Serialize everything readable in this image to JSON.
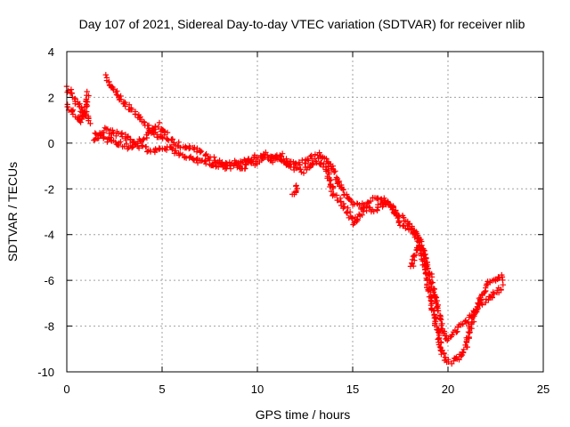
{
  "chart_data": {
    "type": "scatter",
    "title": "Day 107 of 2021, Sidereal Day-to-day VTEC variation (SDTVAR) for receiver nlib",
    "xlabel": "GPS time / hours",
    "ylabel": "SDTVAR / TECUs",
    "xlim": [
      0,
      25
    ],
    "ylim": [
      -10,
      4
    ],
    "xticks": [
      0,
      5,
      10,
      15,
      20,
      25
    ],
    "yticks": [
      -10,
      -8,
      -6,
      -4,
      -2,
      0,
      2,
      4
    ],
    "grid": true,
    "marker": "+",
    "series": [
      {
        "name": "SDTVAR",
        "color": "#ff0000",
        "arcs": [
          [
            [
              0.0,
              2.4
            ],
            [
              0.2,
              2.2
            ],
            [
              0.4,
              1.9
            ],
            [
              0.6,
              1.7
            ],
            [
              0.8,
              1.4
            ],
            [
              1.0,
              1.2
            ],
            [
              1.2,
              0.9
            ]
          ],
          [
            [
              0.0,
              1.7
            ],
            [
              0.2,
              1.5
            ],
            [
              0.4,
              1.3
            ],
            [
              0.6,
              1.1
            ],
            [
              0.8,
              1.0
            ],
            [
              1.0,
              1.4
            ],
            [
              1.1,
              2.2
            ]
          ],
          [
            [
              1.4,
              0.2
            ],
            [
              1.7,
              0.5
            ],
            [
              2.0,
              0.6
            ],
            [
              2.3,
              0.5
            ],
            [
              2.6,
              0.4
            ],
            [
              3.0,
              0.3
            ],
            [
              3.4,
              0.1
            ],
            [
              3.8,
              -0.1
            ],
            [
              4.2,
              -0.3
            ],
            [
              4.6,
              -0.3
            ],
            [
              5.0,
              -0.2
            ],
            [
              5.5,
              -0.3
            ],
            [
              6.0,
              -0.5
            ],
            [
              6.5,
              -0.6
            ],
            [
              7.0,
              -0.8
            ],
            [
              7.5,
              -0.9
            ],
            [
              8.0,
              -1.0
            ],
            [
              8.5,
              -1.1
            ],
            [
              9.0,
              -0.9
            ],
            [
              9.5,
              -0.7
            ],
            [
              10.0,
              -0.6
            ],
            [
              10.5,
              -0.5
            ],
            [
              11.0,
              -0.6
            ],
            [
              11.5,
              -0.8
            ],
            [
              12.0,
              -0.9
            ],
            [
              12.5,
              -0.8
            ],
            [
              13.0,
              -0.6
            ],
            [
              13.4,
              -0.5
            ],
            [
              13.8,
              -0.9
            ],
            [
              14.2,
              -1.6
            ],
            [
              14.6,
              -2.2
            ],
            [
              15.0,
              -2.6
            ],
            [
              15.4,
              -2.8
            ],
            [
              15.8,
              -2.6
            ],
            [
              16.2,
              -2.4
            ],
            [
              16.6,
              -2.5
            ],
            [
              17.0,
              -2.8
            ],
            [
              17.5,
              -3.2
            ],
            [
              18.0,
              -3.6
            ],
            [
              18.5,
              -4.2
            ],
            [
              18.9,
              -5.2
            ],
            [
              19.2,
              -6.3
            ],
            [
              19.5,
              -7.3
            ],
            [
              19.8,
              -8.3
            ],
            [
              20.0,
              -8.6
            ],
            [
              20.4,
              -8.2
            ],
            [
              20.8,
              -7.9
            ],
            [
              21.2,
              -7.6
            ],
            [
              21.5,
              -7.2
            ],
            [
              21.8,
              -6.6
            ],
            [
              22.1,
              -6.1
            ],
            [
              22.4,
              -6.0
            ],
            [
              22.7,
              -5.8
            ],
            [
              22.9,
              -5.9
            ]
          ],
          [
            [
              1.6,
              0.3
            ],
            [
              2.0,
              0.2
            ],
            [
              2.4,
              0.1
            ],
            [
              2.8,
              0.0
            ],
            [
              3.2,
              -0.2
            ],
            [
              3.6,
              0.0
            ],
            [
              4.0,
              0.2
            ],
            [
              4.4,
              0.5
            ],
            [
              4.8,
              0.8
            ],
            [
              5.2,
              0.4
            ],
            [
              5.6,
              0.0
            ],
            [
              6.0,
              -0.1
            ],
            [
              6.4,
              -0.2
            ],
            [
              6.8,
              -0.3
            ],
            [
              7.2,
              -0.5
            ],
            [
              7.6,
              -0.7
            ],
            [
              8.0,
              -0.8
            ],
            [
              8.4,
              -1.0
            ],
            [
              8.8,
              -0.8
            ],
            [
              9.2,
              -1.2
            ],
            [
              9.6,
              -0.7
            ],
            [
              10.0,
              -0.9
            ],
            [
              10.4,
              -0.6
            ],
            [
              10.8,
              -0.8
            ],
            [
              11.2,
              -0.5
            ],
            [
              11.6,
              -1.0
            ],
            [
              12.0,
              -1.1
            ],
            [
              12.4,
              -1.2
            ],
            [
              12.8,
              -1.0
            ],
            [
              13.2,
              -0.8
            ],
            [
              13.6,
              -1.0
            ],
            [
              14.0,
              -2.3
            ],
            [
              14.4,
              -2.6
            ],
            [
              14.8,
              -3.1
            ],
            [
              15.1,
              -3.5
            ],
            [
              15.4,
              -3.1
            ],
            [
              15.8,
              -2.8
            ],
            [
              16.2,
              -3.0
            ],
            [
              16.6,
              -2.6
            ],
            [
              17.0,
              -2.7
            ],
            [
              17.4,
              -3.4
            ],
            [
              17.8,
              -3.7
            ],
            [
              18.2,
              -3.9
            ],
            [
              18.5,
              -4.3
            ],
            [
              18.8,
              -5.5
            ],
            [
              19.1,
              -6.8
            ],
            [
              19.4,
              -8.0
            ],
            [
              19.7,
              -9.2
            ],
            [
              20.0,
              -9.6
            ],
            [
              20.3,
              -9.5
            ],
            [
              20.6,
              -9.4
            ],
            [
              20.9,
              -9.0
            ],
            [
              21.1,
              -8.3
            ],
            [
              21.4,
              -7.4
            ],
            [
              21.7,
              -7.0
            ],
            [
              22.0,
              -6.9
            ],
            [
              22.3,
              -6.7
            ],
            [
              22.6,
              -6.5
            ],
            [
              22.9,
              -6.3
            ]
          ],
          [
            [
              2.1,
              2.9
            ],
            [
              2.4,
              2.4
            ],
            [
              2.8,
              1.9
            ],
            [
              3.2,
              1.6
            ],
            [
              3.6,
              1.3
            ],
            [
              4.0,
              0.9
            ],
            [
              4.4,
              0.6
            ],
            [
              4.8,
              0.3
            ],
            [
              5.1,
              0.1
            ]
          ],
          [
            [
              11.9,
              -2.3
            ],
            [
              12.1,
              -1.9
            ]
          ],
          [
            [
              18.1,
              -5.4
            ],
            [
              18.4,
              -4.6
            ]
          ]
        ]
      }
    ]
  }
}
